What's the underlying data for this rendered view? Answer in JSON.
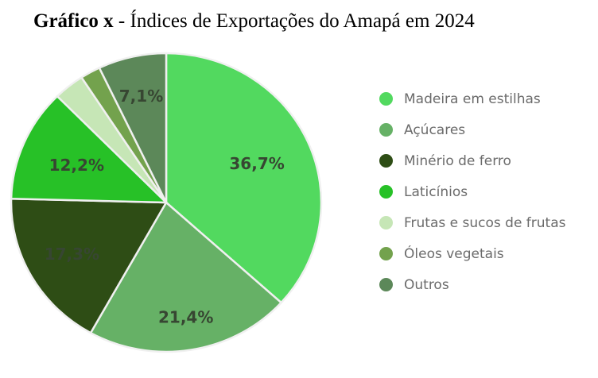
{
  "title": {
    "prefix": "Gráfico x",
    "rest": " - Índices de Exportações do Amapá em 2024"
  },
  "colors": {
    "background": "#ffffff",
    "slice_border": "#f0f0f0",
    "pie_label_text": "#374632",
    "legend_text": "#6b6b6b",
    "title_text": "#000000"
  },
  "chart_data": {
    "type": "pie",
    "title": "Gráfico x - Índices de Exportações do Amapá em 2024",
    "start_angle_deg": 0,
    "direction": "clockwise",
    "legend_position": "right",
    "value_format": "percent-comma-decimal",
    "slices": [
      {
        "label": "Madeira em estilhas",
        "value": 36.7,
        "pct_label": "36,7%",
        "color": "#52d95f",
        "label_radius": 0.64
      },
      {
        "label": "Açúcares",
        "value": 21.4,
        "pct_label": "21,4%",
        "color": "#66b166",
        "label_radius": 0.78
      },
      {
        "label": "Minério de ferro",
        "value": 17.3,
        "pct_label": "17,3%",
        "color": "#2e4d15",
        "label_radius": 0.7
      },
      {
        "label": "Laticínios",
        "value": 12.2,
        "pct_label": "12,2%",
        "color": "#27c127",
        "label_radius": 0.63
      },
      {
        "label": "Frutas e sucos de frutas",
        "value": 3.2,
        "pct_label": "",
        "color": "#c6e6b6",
        "label_radius": 0
      },
      {
        "label": "Óleos vegetais",
        "value": 2.1,
        "pct_label": "",
        "color": "#73a24d",
        "label_radius": 0
      },
      {
        "label": "Outros",
        "value": 7.1,
        "pct_label": "7,1%",
        "color": "#5c8859",
        "label_radius": 0.73
      }
    ]
  }
}
